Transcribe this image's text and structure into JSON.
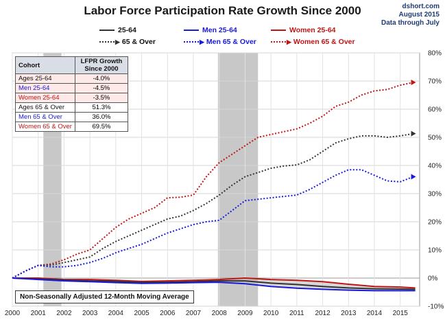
{
  "header": {
    "title": "Labor Force Participation Rate Growth Since 2000",
    "source": [
      "dshort.com",
      "August 2015",
      "Data through July"
    ]
  },
  "legend": [
    {
      "label": "25-64",
      "color": "#333333",
      "style": "solid"
    },
    {
      "label": "Men 25-64",
      "color": "#1a1adb",
      "style": "solid"
    },
    {
      "label": "Women 25-64",
      "color": "#c01515",
      "style": "solid"
    },
    {
      "label": "65 & Over",
      "color": "#333333",
      "style": "dotted"
    },
    {
      "label": "Men 65 & Over",
      "color": "#1a1adb",
      "style": "dotted"
    },
    {
      "label": "Women 65 & Over",
      "color": "#c01515",
      "style": "dotted"
    }
  ],
  "table": {
    "headers": [
      "Cohort",
      "LFPR Growth Since 2000"
    ],
    "rows": [
      {
        "cohort": "Ages 25-64",
        "value": "-4.0%",
        "color": "#111111",
        "bg": "#fde9e7"
      },
      {
        "cohort": "Men 25-64",
        "value": "-4.5%",
        "color": "#1a1adb",
        "bg": "#fde9e7"
      },
      {
        "cohort": "Women 25-64",
        "value": "-3.5%",
        "color": "#c01515",
        "bg": "#fde9e7"
      },
      {
        "cohort": "Ages 65 & Over",
        "value": "51.3%",
        "color": "#111111",
        "bg": "#ffffff"
      },
      {
        "cohort": "Men 65 & Over",
        "value": "36.0%",
        "color": "#1a1adb",
        "bg": "#ffffff"
      },
      {
        "cohort": "Women 65 & Over",
        "value": "69.5%",
        "color": "#c01515",
        "bg": "#ffffff"
      }
    ]
  },
  "note": "Non-Seasonally Adjusted 12-Month Moving Average",
  "chart_data": {
    "type": "line",
    "title": "Labor Force Participation Rate Growth Since 2000",
    "xlim": [
      2000,
      2015.75
    ],
    "ylim": [
      -10,
      80
    ],
    "x_ticks": [
      "2000",
      "2001",
      "2002",
      "2003",
      "2004",
      "2005",
      "2006",
      "2007",
      "2008",
      "2009",
      "2010",
      "2011",
      "2012",
      "2013",
      "2014",
      "2015"
    ],
    "y_ticks": [
      "-10%",
      "0%",
      "10%",
      "20%",
      "30%",
      "40%",
      "50%",
      "60%",
      "70%",
      "80%"
    ],
    "grid": true,
    "recessions": [
      [
        2001.2,
        2001.9
      ],
      [
        2007.95,
        2009.5
      ]
    ],
    "series": [
      {
        "name": "Women 65 & Over",
        "color": "#c01515",
        "style": "dotted",
        "end_marker": true,
        "x": [
          2000,
          2000.5,
          2001,
          2001.5,
          2002,
          2002.5,
          2003,
          2003.5,
          2004,
          2004.5,
          2005,
          2005.5,
          2006,
          2006.5,
          2007,
          2007.5,
          2008,
          2008.5,
          2009,
          2009.5,
          2010,
          2010.5,
          2011,
          2011.5,
          2012,
          2012.5,
          2013,
          2013.5,
          2014,
          2014.5,
          2015,
          2015.5
        ],
        "y": [
          0,
          2.5,
          4.5,
          5,
          6.5,
          8.5,
          10,
          14,
          18,
          21,
          23,
          25,
          28.5,
          28.7,
          29.5,
          36,
          41,
          44,
          47,
          50,
          51,
          52,
          53,
          55,
          57.5,
          61,
          62.5,
          65,
          66.5,
          67,
          68.5,
          69.5
        ]
      },
      {
        "name": "65 & Over",
        "color": "#333333",
        "style": "dotted",
        "end_marker": true,
        "x": [
          2000,
          2000.5,
          2001,
          2001.5,
          2002,
          2002.5,
          2003,
          2003.5,
          2004,
          2004.5,
          2005,
          2005.5,
          2006,
          2006.5,
          2007,
          2007.5,
          2008,
          2008.5,
          2009,
          2009.5,
          2010,
          2010.5,
          2011,
          2011.5,
          2012,
          2012.5,
          2013,
          2013.5,
          2014,
          2014.5,
          2015,
          2015.5
        ],
        "y": [
          0,
          2.5,
          4.5,
          4.6,
          5.5,
          6.5,
          7.5,
          10.5,
          13,
          15,
          17,
          19,
          21,
          22,
          24,
          26.5,
          29.5,
          33,
          36,
          37.5,
          39,
          39.8,
          40.2,
          42,
          45,
          48,
          49.5,
          50.5,
          50.5,
          50,
          50.5,
          51.3
        ]
      },
      {
        "name": "Men 65 & Over",
        "color": "#1a1adb",
        "style": "dotted",
        "end_marker": true,
        "x": [
          2000,
          2000.5,
          2001,
          2001.5,
          2002,
          2002.5,
          2003,
          2003.5,
          2004,
          2004.5,
          2005,
          2005.5,
          2006,
          2006.5,
          2007,
          2007.5,
          2008,
          2008.5,
          2009,
          2009.5,
          2010,
          2010.5,
          2011,
          2011.5,
          2012,
          2012.5,
          2013,
          2013.5,
          2014,
          2014.5,
          2015,
          2015.5
        ],
        "y": [
          0,
          2.5,
          4.5,
          4,
          4,
          4.5,
          5.5,
          7,
          9,
          10.5,
          12,
          14,
          16,
          17.5,
          19,
          20,
          20.5,
          24,
          27.5,
          28,
          28.5,
          29,
          29.5,
          31.5,
          34,
          36.5,
          38.5,
          38.5,
          36.5,
          34.5,
          34.2,
          36
        ]
      },
      {
        "name": "Women 25-64",
        "color": "#c01515",
        "style": "solid",
        "end_marker": false,
        "x": [
          2000,
          2001,
          2002,
          2003,
          2004,
          2005,
          2006,
          2007,
          2008,
          2009,
          2010,
          2011,
          2012,
          2013,
          2014,
          2015,
          2015.58
        ],
        "y": [
          0,
          0,
          -0.5,
          -0.5,
          -0.8,
          -1.2,
          -1,
          -0.8,
          -0.5,
          0,
          -0.5,
          -0.8,
          -1.3,
          -2.2,
          -3,
          -3.2,
          -3.5
        ]
      },
      {
        "name": "25-64",
        "color": "#333333",
        "style": "solid",
        "end_marker": false,
        "x": [
          2000,
          2001,
          2002,
          2003,
          2004,
          2005,
          2006,
          2007,
          2008,
          2009,
          2010,
          2011,
          2012,
          2013,
          2014,
          2015,
          2015.58
        ],
        "y": [
          0,
          -0.3,
          -0.7,
          -1,
          -1.2,
          -1.5,
          -1.5,
          -1.3,
          -1,
          -1,
          -1.8,
          -2.3,
          -3,
          -3.5,
          -3.8,
          -3.9,
          -4
        ]
      },
      {
        "name": "Men 25-64",
        "color": "#1a1adb",
        "style": "solid",
        "end_marker": false,
        "x": [
          2000,
          2001,
          2002,
          2003,
          2004,
          2005,
          2006,
          2007,
          2008,
          2009,
          2010,
          2011,
          2012,
          2013,
          2014,
          2015,
          2015.58
        ],
        "y": [
          0,
          -0.5,
          -1,
          -1.3,
          -1.6,
          -1.9,
          -1.8,
          -1.6,
          -1.5,
          -2,
          -3,
          -3.6,
          -4,
          -4.3,
          -4.5,
          -4.5,
          -4.5
        ]
      }
    ]
  }
}
